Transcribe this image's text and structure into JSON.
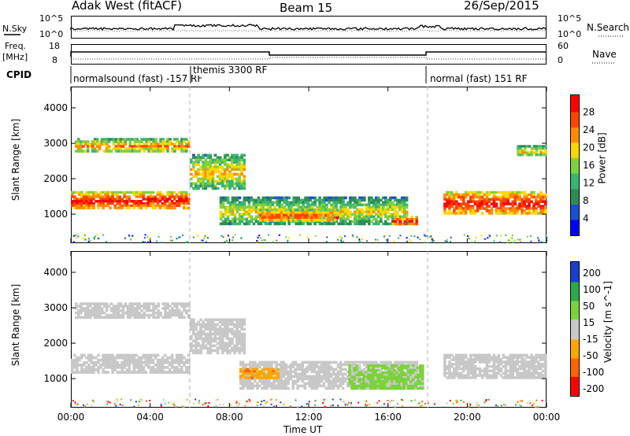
{
  "header": {
    "left": "Adak West (fitACF)",
    "center": "Beam 15",
    "right": "26/Sep/2015"
  },
  "strips": {
    "nsky_label": "N.Sky",
    "nsky_ticks": [
      "10^5",
      "10^0"
    ],
    "nsearch_label": "N.Search",
    "nsearch_ticks": [
      "10^5",
      "10^0"
    ],
    "freq_label_1": "Freq.",
    "freq_label_2": "[MHz]",
    "freq_ticks": [
      "18",
      "8"
    ],
    "nave_label": "Nave",
    "nave_ticks": [
      "60",
      "0"
    ],
    "cpid_label": "CPID",
    "cpid_segments": [
      "normalsound (fast) -157 RF",
      "themis 3300 RF",
      "normal (fast) 151 RF"
    ]
  },
  "colors": {
    "frame": "#000000",
    "dashed": "#b0b0b0",
    "power_scale": [
      "#0000ff",
      "#1a4fd0",
      "#2e8b57",
      "#3cb371",
      "#7fd040",
      "#ffd700",
      "#ff8c00",
      "#ff4500",
      "#ff0000"
    ],
    "velocity_scale": [
      "#ff0000",
      "#ff6400",
      "#ffa500",
      "#c8c8c8",
      "#7cd23c",
      "#2ea84a",
      "#1a3fcf"
    ]
  },
  "chart_data": [
    {
      "type": "heatmap",
      "title": "",
      "xlabel": "",
      "ylabel": "Slant Range [km]",
      "xlim": [
        "00:00",
        "24:00"
      ],
      "ylim": [
        180,
        4600
      ],
      "x_ticks": [
        "00:00",
        "04:00",
        "08:00",
        "12:00",
        "16:00",
        "20:00",
        "00:00"
      ],
      "y_ticks": [
        "1000",
        "2000",
        "3000",
        "4000"
      ],
      "colorbar_label": "Power [dB]",
      "colorbar_ticks": [
        "4",
        "8",
        "12",
        "16",
        "20",
        "24",
        "28"
      ],
      "features": [
        {
          "t0": 0.0,
          "t1": 6.0,
          "r0": 1150,
          "r1": 1650,
          "level": 28
        },
        {
          "t0": 0.2,
          "t1": 6.0,
          "r0": 2750,
          "r1": 3150,
          "level": 22
        },
        {
          "t0": 6.0,
          "t1": 8.8,
          "r0": 1700,
          "r1": 2700,
          "level": 20
        },
        {
          "t0": 7.5,
          "t1": 17.0,
          "r0": 700,
          "r1": 1500,
          "level": 18
        },
        {
          "t0": 9.5,
          "t1": 13.5,
          "r0": 800,
          "r1": 1150,
          "level": 26
        },
        {
          "t0": 16.2,
          "t1": 17.5,
          "r0": 700,
          "r1": 950,
          "level": 28
        },
        {
          "t0": 18.8,
          "t1": 24.0,
          "r0": 1000,
          "r1": 1650,
          "level": 28
        },
        {
          "t0": 22.5,
          "t1": 24.0,
          "r0": 2650,
          "r1": 2950,
          "level": 20
        }
      ]
    },
    {
      "type": "heatmap",
      "title": "",
      "xlabel": "Time UT",
      "ylabel": "Slant Range [km]",
      "xlim": [
        "00:00",
        "24:00"
      ],
      "ylim": [
        180,
        4600
      ],
      "x_ticks": [
        "00:00",
        "04:00",
        "08:00",
        "12:00",
        "16:00",
        "20:00",
        "00:00"
      ],
      "y_ticks": [
        "1000",
        "2000",
        "3000",
        "4000"
      ],
      "colorbar_label": "Velocity [m s^-1]",
      "colorbar_ticks": [
        "200",
        "100",
        "50",
        "15",
        "-15",
        "-50",
        "-100",
        "-200"
      ],
      "features": [
        {
          "t0": 0.0,
          "t1": 6.0,
          "r0": 1150,
          "r1": 1700,
          "velocity": 0
        },
        {
          "t0": 0.2,
          "t1": 6.0,
          "r0": 2700,
          "r1": 3150,
          "velocity": 0
        },
        {
          "t0": 6.0,
          "t1": 8.8,
          "r0": 1700,
          "r1": 2700,
          "velocity": 0
        },
        {
          "t0": 8.5,
          "t1": 17.5,
          "r0": 700,
          "r1": 1500,
          "velocity": 0
        },
        {
          "t0": 8.5,
          "t1": 10.5,
          "r0": 1000,
          "r1": 1300,
          "velocity": -60
        },
        {
          "t0": 14.0,
          "t1": 17.8,
          "r0": 700,
          "r1": 1400,
          "velocity": 40
        },
        {
          "t0": 18.8,
          "t1": 24.0,
          "r0": 1000,
          "r1": 1700,
          "velocity": 0
        }
      ]
    }
  ]
}
